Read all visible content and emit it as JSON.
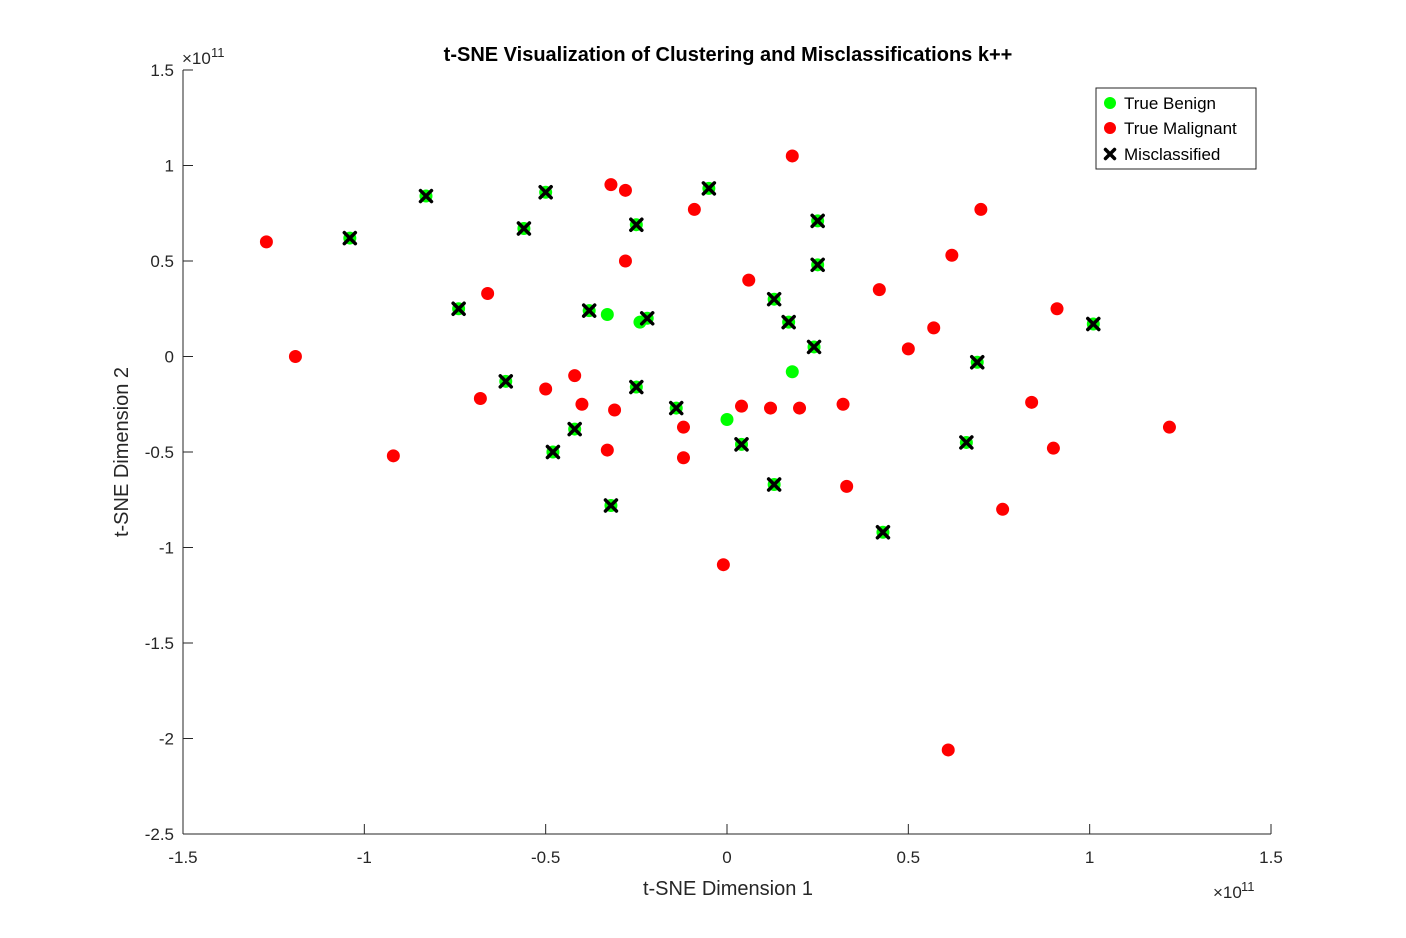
{
  "chart_data": {
    "type": "scatter",
    "title": "t-SNE Visualization of Clustering and Misclassifications k++",
    "xlabel": "t-SNE Dimension 1",
    "ylabel": "t-SNE Dimension 2",
    "x_exponent_label": "×10",
    "x_exponent": "11",
    "y_exponent_label": "×10",
    "y_exponent": "11",
    "xlim": [
      -1.5,
      1.5
    ],
    "ylim": [
      -2.5,
      1.5
    ],
    "x_ticks": [
      -1.5,
      -1,
      -0.5,
      0,
      0.5,
      1,
      1.5
    ],
    "x_tick_labels": [
      "-1.5",
      "-1",
      "-0.5",
      "0",
      "0.5",
      "1",
      "1.5"
    ],
    "y_ticks": [
      -2.5,
      -2,
      -1.5,
      -1,
      -0.5,
      0,
      0.5,
      1,
      1.5
    ],
    "y_tick_labels": [
      "-2.5",
      "-2",
      "-1.5",
      "-1",
      "-0.5",
      "0",
      "0.5",
      "1",
      "1.5"
    ],
    "grid": false,
    "legend_position": "top-right",
    "colors": {
      "benign": "#00ff00",
      "malignant": "#ff0000",
      "misclassified": "#000000",
      "axis": "#262626"
    },
    "series": [
      {
        "name": "True Benign",
        "marker": "circle",
        "points": [
          [
            -1.04,
            0.62
          ],
          [
            -0.83,
            0.84
          ],
          [
            -0.74,
            0.25
          ],
          [
            -0.61,
            -0.13
          ],
          [
            -0.56,
            0.67
          ],
          [
            -0.5,
            0.86
          ],
          [
            -0.48,
            -0.5
          ],
          [
            -0.42,
            -0.38
          ],
          [
            -0.38,
            0.24
          ],
          [
            -0.33,
            0.22
          ],
          [
            -0.32,
            -0.78
          ],
          [
            -0.25,
            0.69
          ],
          [
            -0.25,
            -0.16
          ],
          [
            -0.24,
            0.18
          ],
          [
            -0.22,
            0.2
          ],
          [
            -0.14,
            -0.27
          ],
          [
            -0.05,
            0.88
          ],
          [
            0.0,
            -0.33
          ],
          [
            0.04,
            -0.46
          ],
          [
            0.13,
            0.3
          ],
          [
            0.13,
            -0.67
          ],
          [
            0.17,
            0.18
          ],
          [
            0.18,
            -0.08
          ],
          [
            0.24,
            0.05
          ],
          [
            0.25,
            0.71
          ],
          [
            0.25,
            0.48
          ],
          [
            0.43,
            -0.92
          ],
          [
            0.66,
            -0.45
          ],
          [
            0.69,
            -0.03
          ],
          [
            1.01,
            0.17
          ]
        ]
      },
      {
        "name": "True Malignant",
        "marker": "circle",
        "points": [
          [
            -1.27,
            0.6
          ],
          [
            -1.19,
            0.0
          ],
          [
            -0.92,
            -0.52
          ],
          [
            -0.68,
            -0.22
          ],
          [
            -0.66,
            0.33
          ],
          [
            -0.5,
            -0.17
          ],
          [
            -0.42,
            -0.1
          ],
          [
            -0.4,
            -0.25
          ],
          [
            -0.33,
            -0.49
          ],
          [
            -0.32,
            0.9
          ],
          [
            -0.31,
            -0.28
          ],
          [
            -0.28,
            0.87
          ],
          [
            -0.28,
            0.5
          ],
          [
            -0.12,
            -0.37
          ],
          [
            -0.12,
            -0.53
          ],
          [
            -0.09,
            0.77
          ],
          [
            -0.01,
            -1.09
          ],
          [
            0.04,
            -0.26
          ],
          [
            0.06,
            0.4
          ],
          [
            0.12,
            -0.27
          ],
          [
            0.18,
            1.05
          ],
          [
            0.2,
            -0.27
          ],
          [
            0.32,
            -0.25
          ],
          [
            0.33,
            -0.68
          ],
          [
            0.42,
            0.35
          ],
          [
            0.5,
            0.04
          ],
          [
            0.57,
            0.15
          ],
          [
            0.62,
            0.53
          ],
          [
            0.61,
            -2.06
          ],
          [
            0.7,
            0.77
          ],
          [
            0.76,
            -0.8
          ],
          [
            0.84,
            -0.24
          ],
          [
            0.9,
            -0.48
          ],
          [
            0.91,
            0.25
          ],
          [
            1.22,
            -0.37
          ]
        ]
      },
      {
        "name": "Misclassified",
        "marker": "x",
        "points": [
          [
            -1.04,
            0.62
          ],
          [
            -0.83,
            0.84
          ],
          [
            -0.74,
            0.25
          ],
          [
            -0.61,
            -0.13
          ],
          [
            -0.56,
            0.67
          ],
          [
            -0.5,
            0.86
          ],
          [
            -0.48,
            -0.5
          ],
          [
            -0.42,
            -0.38
          ],
          [
            -0.38,
            0.24
          ],
          [
            -0.32,
            -0.78
          ],
          [
            -0.25,
            0.69
          ],
          [
            -0.25,
            -0.16
          ],
          [
            -0.22,
            0.2
          ],
          [
            -0.14,
            -0.27
          ],
          [
            -0.05,
            0.88
          ],
          [
            0.04,
            -0.46
          ],
          [
            0.13,
            0.3
          ],
          [
            0.13,
            -0.67
          ],
          [
            0.17,
            0.18
          ],
          [
            0.24,
            0.05
          ],
          [
            0.25,
            0.71
          ],
          [
            0.25,
            0.48
          ],
          [
            0.43,
            -0.92
          ],
          [
            0.66,
            -0.45
          ],
          [
            0.69,
            -0.03
          ],
          [
            1.01,
            0.17
          ]
        ]
      }
    ]
  }
}
